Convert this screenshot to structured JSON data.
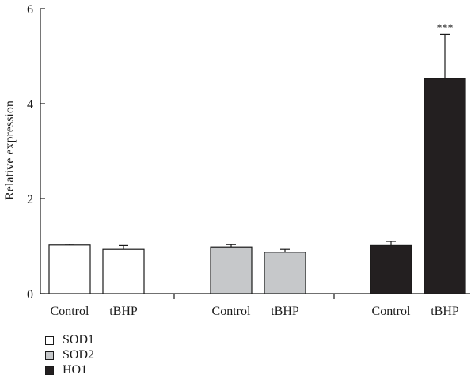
{
  "chart_data": {
    "type": "bar",
    "ylabel": "Relative expression",
    "ylim": [
      0,
      6
    ],
    "yticks": [
      0,
      2,
      4,
      6
    ],
    "groups": [
      {
        "series": "SOD1",
        "bars": [
          {
            "label": "Control",
            "value": 1.02,
            "error": 0.02,
            "annotation": ""
          },
          {
            "label": "tBHP",
            "value": 0.93,
            "error": 0.08,
            "annotation": ""
          }
        ]
      },
      {
        "series": "SOD2",
        "bars": [
          {
            "label": "Control",
            "value": 0.98,
            "error": 0.05,
            "annotation": ""
          },
          {
            "label": "tBHP",
            "value": 0.87,
            "error": 0.06,
            "annotation": ""
          }
        ]
      },
      {
        "series": "HO1",
        "bars": [
          {
            "label": "Control",
            "value": 1.01,
            "error": 0.09,
            "annotation": ""
          },
          {
            "label": "tBHP",
            "value": 4.53,
            "error": 0.93,
            "annotation": "***"
          }
        ]
      }
    ],
    "legend": [
      {
        "name": "SOD1",
        "color": "#ffffff"
      },
      {
        "name": "SOD2",
        "color": "#c6c8ca"
      },
      {
        "name": "HO1",
        "color": "#231f20"
      }
    ]
  }
}
